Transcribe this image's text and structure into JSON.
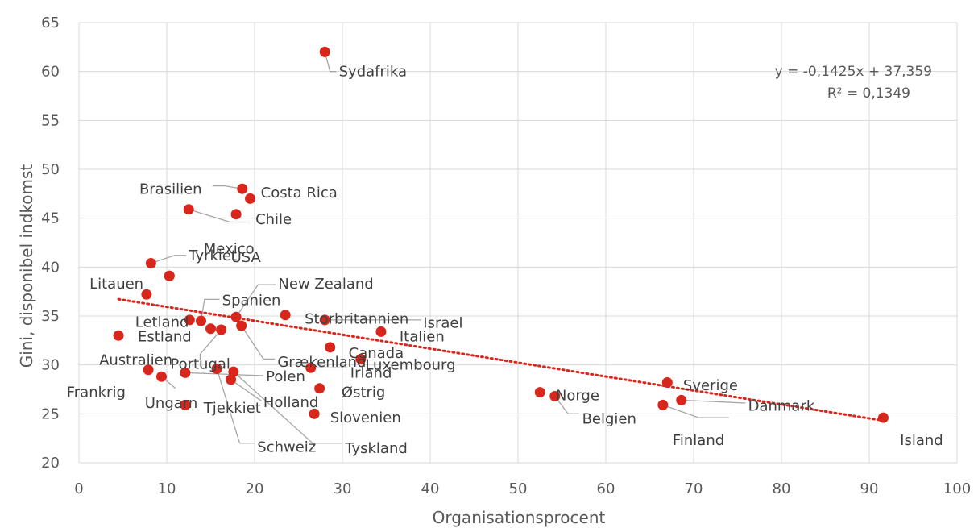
{
  "chart_data": {
    "type": "scatter",
    "title": "",
    "xlabel": "Organisationsprocent",
    "ylabel": "Gini, disponibel indkomst",
    "xlim": [
      0,
      100
    ],
    "ylim": [
      20,
      65
    ],
    "xticks": [
      "0",
      "10",
      "20",
      "30",
      "40",
      "50",
      "60",
      "70",
      "80",
      "90",
      "100"
    ],
    "yticks": [
      "20",
      "25",
      "30",
      "35",
      "40",
      "45",
      "50",
      "55",
      "60",
      "65"
    ],
    "grid": true,
    "marker_color": "#d9261c",
    "trendline": {
      "type": "linear",
      "slope": -0.1425,
      "intercept": 37.359,
      "color": "#d9261c",
      "style": "dotted",
      "equation": "y = -0,1425x + 37,359",
      "r_squared": "R² = 0,1349"
    },
    "points": [
      {
        "label": "Sydafrika",
        "x": 28.0,
        "y": 62.0
      },
      {
        "label": "Brasilien",
        "x": 18.6,
        "y": 48.0
      },
      {
        "label": "Costa Rica",
        "x": 19.5,
        "y": 47.0
      },
      {
        "label": "Chile",
        "x": 12.5,
        "y": 45.9
      },
      {
        "label": "Chile",
        "x": 17.9,
        "y": 45.4
      },
      {
        "label": "Mexico",
        "x": 8.2,
        "y": 40.4
      },
      {
        "label": "Tyrkiet",
        "x": 10.3,
        "y": 39.1
      },
      {
        "label": "USA",
        "x": 10.3,
        "y": 39.1
      },
      {
        "label": "Litauen",
        "x": 7.7,
        "y": 37.2
      },
      {
        "label": "New Zealand",
        "x": 17.9,
        "y": 34.9
      },
      {
        "label": "Storbritannien",
        "x": 23.5,
        "y": 35.1
      },
      {
        "label": "Israel",
        "x": 28.0,
        "y": 34.6
      },
      {
        "label": "Spanien",
        "x": 13.9,
        "y": 34.5
      },
      {
        "label": "Letland",
        "x": 12.6,
        "y": 34.6
      },
      {
        "label": "Estland",
        "x": 15.0,
        "y": 33.7
      },
      {
        "label": "Portugal",
        "x": 16.2,
        "y": 33.6
      },
      {
        "label": "Grækenland",
        "x": 18.5,
        "y": 34.0
      },
      {
        "label": "Italien",
        "x": 34.4,
        "y": 33.4
      },
      {
        "label": "Australien",
        "x": 4.5,
        "y": 33.0
      },
      {
        "label": "Canada",
        "x": 28.6,
        "y": 31.8
      },
      {
        "label": "Luxembourg",
        "x": 32.1,
        "y": 30.6
      },
      {
        "label": "Irland",
        "x": 26.4,
        "y": 29.7
      },
      {
        "label": "Frankrig",
        "x": 7.9,
        "y": 29.5
      },
      {
        "label": "Ungarn",
        "x": 9.4,
        "y": 28.8
      },
      {
        "label": "Polen",
        "x": 12.1,
        "y": 29.2
      },
      {
        "label": "Schweiz",
        "x": 15.7,
        "y": 29.6
      },
      {
        "label": "Tyskland",
        "x": 17.6,
        "y": 29.3
      },
      {
        "label": "Holland",
        "x": 17.3,
        "y": 28.5
      },
      {
        "label": "Østrig",
        "x": 27.4,
        "y": 27.6
      },
      {
        "label": "Tjekkiet",
        "x": 12.1,
        "y": 25.9
      },
      {
        "label": "Slovenien",
        "x": 26.8,
        "y": 25.0
      },
      {
        "label": "Norge",
        "x": 52.5,
        "y": 27.2
      },
      {
        "label": "Belgien",
        "x": 54.2,
        "y": 26.8
      },
      {
        "label": "Sverige",
        "x": 67.0,
        "y": 28.2
      },
      {
        "label": "Danmark",
        "x": 68.6,
        "y": 26.4
      },
      {
        "label": "Finland",
        "x": 66.5,
        "y": 25.9
      },
      {
        "label": "Island",
        "x": 91.6,
        "y": 24.6
      }
    ],
    "labels": [
      {
        "text": "Sydafrika",
        "ref": 0,
        "lx": 29.6,
        "ly": 60.0,
        "anchor": "start",
        "leader": [
          [
            28.0,
            62.0
          ],
          [
            28.6,
            60.0
          ],
          [
            29.3,
            60.0
          ]
        ]
      },
      {
        "text": "Brasilien",
        "ref": 1,
        "lx": 14.0,
        "ly": 48.0,
        "anchor": "end",
        "leader": [
          [
            18.6,
            48.0
          ],
          [
            16.6,
            48.3
          ],
          [
            15.2,
            48.3
          ]
        ]
      },
      {
        "text": "Costa Rica",
        "ref": 2,
        "lx": 20.7,
        "ly": 47.6,
        "anchor": "start",
        "leader": null
      },
      {
        "text": "Chile",
        "ref": 4,
        "lx": 20.1,
        "ly": 44.9,
        "anchor": "start",
        "leader": [
          [
            12.5,
            45.9
          ],
          [
            17.2,
            44.6
          ],
          [
            19.6,
            44.6
          ]
        ]
      },
      {
        "text": "Mexico",
        "ref": 5,
        "lx": 14.2,
        "ly": 41.9,
        "anchor": "start",
        "leader": null
      },
      {
        "text": "Tyrkiet",
        "ref": 6,
        "lx": 12.5,
        "ly": 41.2,
        "anchor": "start",
        "leader": [
          [
            8.2,
            40.4
          ],
          [
            10.9,
            41.2
          ],
          [
            12.2,
            41.2
          ]
        ]
      },
      {
        "text": "USA",
        "ref": 7,
        "lx": 17.3,
        "ly": 41.0,
        "anchor": "start",
        "leader": null
      },
      {
        "text": "Litauen",
        "ref": 8,
        "lx": 1.2,
        "ly": 38.3,
        "anchor": "start",
        "leader": null
      },
      {
        "text": "New Zealand",
        "ref": 9,
        "lx": 22.7,
        "ly": 38.3,
        "anchor": "start",
        "leader": [
          [
            17.9,
            34.9
          ],
          [
            20.4,
            38.2
          ],
          [
            22.4,
            38.2
          ]
        ]
      },
      {
        "text": "Spanien",
        "ref": 12,
        "lx": 16.3,
        "ly": 36.6,
        "anchor": "start",
        "leader": [
          [
            13.9,
            34.5
          ],
          [
            14.3,
            36.7
          ],
          [
            16.0,
            36.7
          ]
        ]
      },
      {
        "text": "Storbritannien",
        "ref": 10,
        "lx": 25.7,
        "ly": 34.7,
        "anchor": "start",
        "leader": null
      },
      {
        "text": "Israel",
        "ref": 11,
        "lx": 39.2,
        "ly": 34.3,
        "anchor": "start",
        "leader": [
          [
            28.0,
            34.6
          ],
          [
            38.9,
            34.6
          ]
        ]
      },
      {
        "text": "Letland",
        "ref": 13,
        "lx": 6.4,
        "ly": 34.4,
        "anchor": "start",
        "leader": null
      },
      {
        "text": "Estland",
        "ref": 14,
        "lx": 6.7,
        "ly": 32.9,
        "anchor": "start",
        "leader": null
      },
      {
        "text": "Italien",
        "ref": 17,
        "lx": 36.5,
        "ly": 32.9,
        "anchor": "start",
        "leader": null
      },
      {
        "text": "Australien",
        "ref": 18,
        "lx": 2.3,
        "ly": 30.5,
        "anchor": "start",
        "leader": null
      },
      {
        "text": "Portugal",
        "ref": 15,
        "lx": 10.4,
        "ly": 30.1,
        "anchor": "start",
        "leader": [
          [
            16.2,
            33.6
          ],
          [
            13.8,
            31.1
          ],
          [
            13.8,
            30.5
          ]
        ]
      },
      {
        "text": "Grækenland",
        "ref": 16,
        "lx": 22.6,
        "ly": 30.3,
        "anchor": "start",
        "leader": [
          [
            18.5,
            34.0
          ],
          [
            21.0,
            30.6
          ],
          [
            22.3,
            30.6
          ]
        ]
      },
      {
        "text": "Canada",
        "ref": 19,
        "lx": 30.7,
        "ly": 31.2,
        "anchor": "start",
        "leader": null
      },
      {
        "text": "Luxembourg",
        "ref": 20,
        "lx": 32.6,
        "ly": 30.0,
        "anchor": "start",
        "leader": null
      },
      {
        "text": "Irland",
        "ref": 21,
        "lx": 30.9,
        "ly": 29.2,
        "anchor": "start",
        "leader": [
          [
            26.4,
            29.7
          ],
          [
            30.6,
            29.7
          ]
        ]
      },
      {
        "text": "Frankrig",
        "ref": 22,
        "lx": -1.4,
        "ly": 27.2,
        "anchor": "start",
        "leader": null
      },
      {
        "text": "Polen",
        "ref": 24,
        "lx": 21.3,
        "ly": 28.8,
        "anchor": "start",
        "leader": [
          [
            12.1,
            29.2
          ],
          [
            21.0,
            28.9
          ]
        ]
      },
      {
        "text": "Ungarn",
        "ref": 23,
        "lx": 7.5,
        "ly": 26.1,
        "anchor": "start",
        "leader": [
          [
            9.4,
            28.8
          ],
          [
            11.0,
            27.6
          ]
        ]
      },
      {
        "text": "Østrig",
        "ref": 28,
        "lx": 29.9,
        "ly": 27.2,
        "anchor": "start",
        "leader": null
      },
      {
        "text": "Holland",
        "ref": 27,
        "lx": 21.0,
        "ly": 26.2,
        "anchor": "start",
        "leader": [
          [
            17.3,
            28.5
          ],
          [
            20.8,
            26.3
          ]
        ]
      },
      {
        "text": "Tjekkiet",
        "ref": 29,
        "lx": 14.2,
        "ly": 25.6,
        "anchor": "start",
        "leader": null
      },
      {
        "text": "Slovenien",
        "ref": 30,
        "lx": 28.6,
        "ly": 24.6,
        "anchor": "start",
        "leader": null
      },
      {
        "text": "Schweiz",
        "ref": 25,
        "lx": 20.3,
        "ly": 21.6,
        "anchor": "start",
        "leader": [
          [
            15.7,
            29.6
          ],
          [
            18.3,
            22.0
          ],
          [
            20.0,
            22.0
          ]
        ]
      },
      {
        "text": "Tyskland",
        "ref": 26,
        "lx": 30.3,
        "ly": 21.5,
        "anchor": "start",
        "leader": [
          [
            17.6,
            29.3
          ],
          [
            26.6,
            22.0
          ],
          [
            30.0,
            22.0
          ]
        ]
      },
      {
        "text": "Norge",
        "ref": 31,
        "lx": 54.3,
        "ly": 26.9,
        "anchor": "start",
        "leader": null
      },
      {
        "text": "Belgien",
        "ref": 32,
        "lx": 57.3,
        "ly": 24.5,
        "anchor": "start",
        "leader": [
          [
            54.2,
            26.8
          ],
          [
            55.7,
            25.0
          ],
          [
            57.0,
            25.0
          ]
        ]
      },
      {
        "text": "Sverige",
        "ref": 33,
        "lx": 68.8,
        "ly": 27.9,
        "anchor": "start",
        "leader": null
      },
      {
        "text": "Danmark",
        "ref": 34,
        "lx": 76.2,
        "ly": 25.8,
        "anchor": "start",
        "leader": [
          [
            68.6,
            26.4
          ],
          [
            75.9,
            26.1
          ]
        ]
      },
      {
        "text": "Finland",
        "ref": 35,
        "lx": 67.6,
        "ly": 22.3,
        "anchor": "start",
        "leader": [
          [
            66.5,
            25.9
          ],
          [
            70.6,
            24.6
          ],
          [
            74.0,
            24.6
          ]
        ]
      },
      {
        "text": "Island",
        "ref": 36,
        "lx": 93.5,
        "ly": 22.3,
        "anchor": "start",
        "leader": null
      }
    ]
  }
}
